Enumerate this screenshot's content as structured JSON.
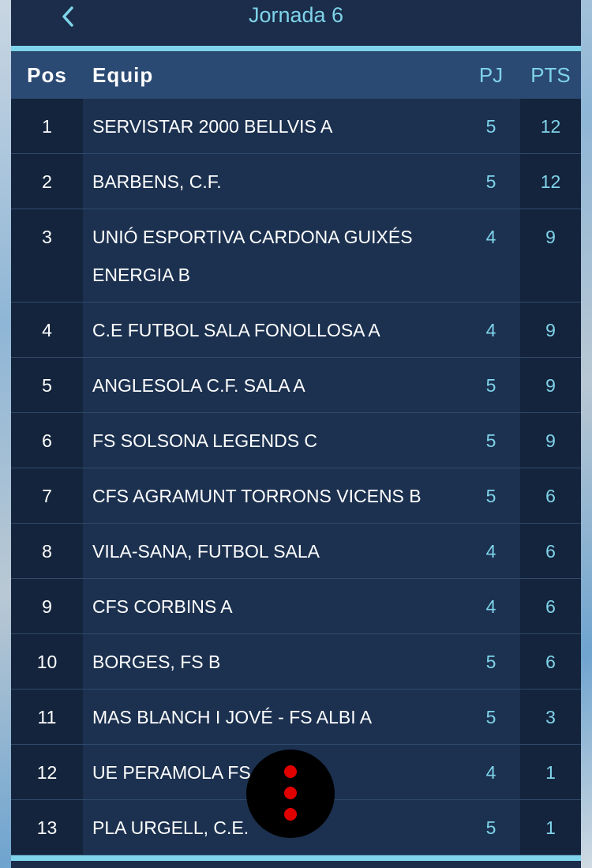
{
  "header": {
    "title": "Jornada 6"
  },
  "table": {
    "columns": {
      "pos": "Pos",
      "team": "Equip",
      "pj": "PJ",
      "pts": "PTS"
    },
    "rows": [
      {
        "pos": 1,
        "team": "SERVISTAR 2000 BELLVIS A",
        "pj": 5,
        "pts": 12
      },
      {
        "pos": 2,
        "team": "BARBENS, C.F.",
        "pj": 5,
        "pts": 12
      },
      {
        "pos": 3,
        "team": "UNIÓ ESPORTIVA CARDONA GUIXÉS ENERGIA B",
        "pj": 4,
        "pts": 9
      },
      {
        "pos": 4,
        "team": "C.E FUTBOL SALA FONOLLOSA A",
        "pj": 4,
        "pts": 9
      },
      {
        "pos": 5,
        "team": "ANGLESOLA C.F. SALA A",
        "pj": 5,
        "pts": 9
      },
      {
        "pos": 6,
        "team": "FS SOLSONA LEGENDS C",
        "pj": 5,
        "pts": 9
      },
      {
        "pos": 7,
        "team": "CFS AGRAMUNT TORRONS VICENS B",
        "pj": 5,
        "pts": 6
      },
      {
        "pos": 8,
        "team": "VILA-SANA, FUTBOL SALA",
        "pj": 4,
        "pts": 6
      },
      {
        "pos": 9,
        "team": "CFS CORBINS A",
        "pj": 4,
        "pts": 6
      },
      {
        "pos": 10,
        "team": "BORGES, FS B",
        "pj": 5,
        "pts": 6
      },
      {
        "pos": 11,
        "team": "MAS BLANCH I JOVÉ - FS ALBI A",
        "pj": 5,
        "pts": 3
      },
      {
        "pos": 12,
        "team": "UE PERAMOLA FS",
        "pj": 4,
        "pts": 1
      },
      {
        "pos": 13,
        "team": "PLA URGELL, C.E.",
        "pj": 5,
        "pts": 1
      }
    ]
  }
}
